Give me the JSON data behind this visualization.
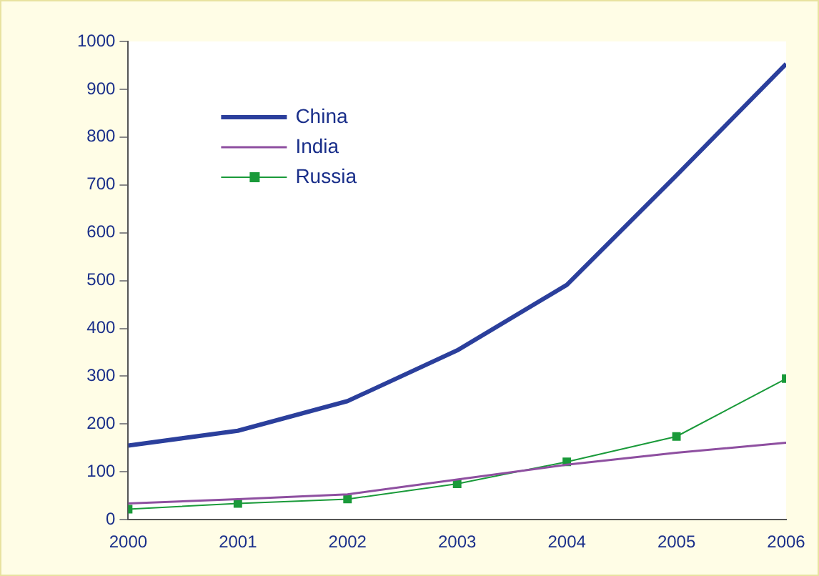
{
  "chart_data": {
    "type": "line",
    "x": [
      2000,
      2001,
      2002,
      2003,
      2004,
      2005,
      2006
    ],
    "series": [
      {
        "name": "China",
        "color": "#2b3f9c",
        "values": [
          155,
          186,
          248,
          354,
          491,
          720,
          953
        ],
        "marker": "none"
      },
      {
        "name": "India",
        "color": "#8e4fa0",
        "values": [
          34,
          43,
          53,
          84,
          115,
          140,
          161
        ],
        "marker": "none"
      },
      {
        "name": "Russia",
        "color": "#1a9a3a",
        "values": [
          22,
          34,
          43,
          75,
          121,
          174,
          295
        ],
        "marker": "square"
      }
    ],
    "xlim": [
      2000,
      2006
    ],
    "xticks": [
      2000,
      2001,
      2002,
      2003,
      2004,
      2005,
      2006
    ],
    "ylim": [
      0,
      1000
    ],
    "yticks": [
      0,
      100,
      200,
      300,
      400,
      500,
      600,
      700,
      800,
      900,
      1000
    ],
    "grid": false,
    "legend": "top left"
  }
}
